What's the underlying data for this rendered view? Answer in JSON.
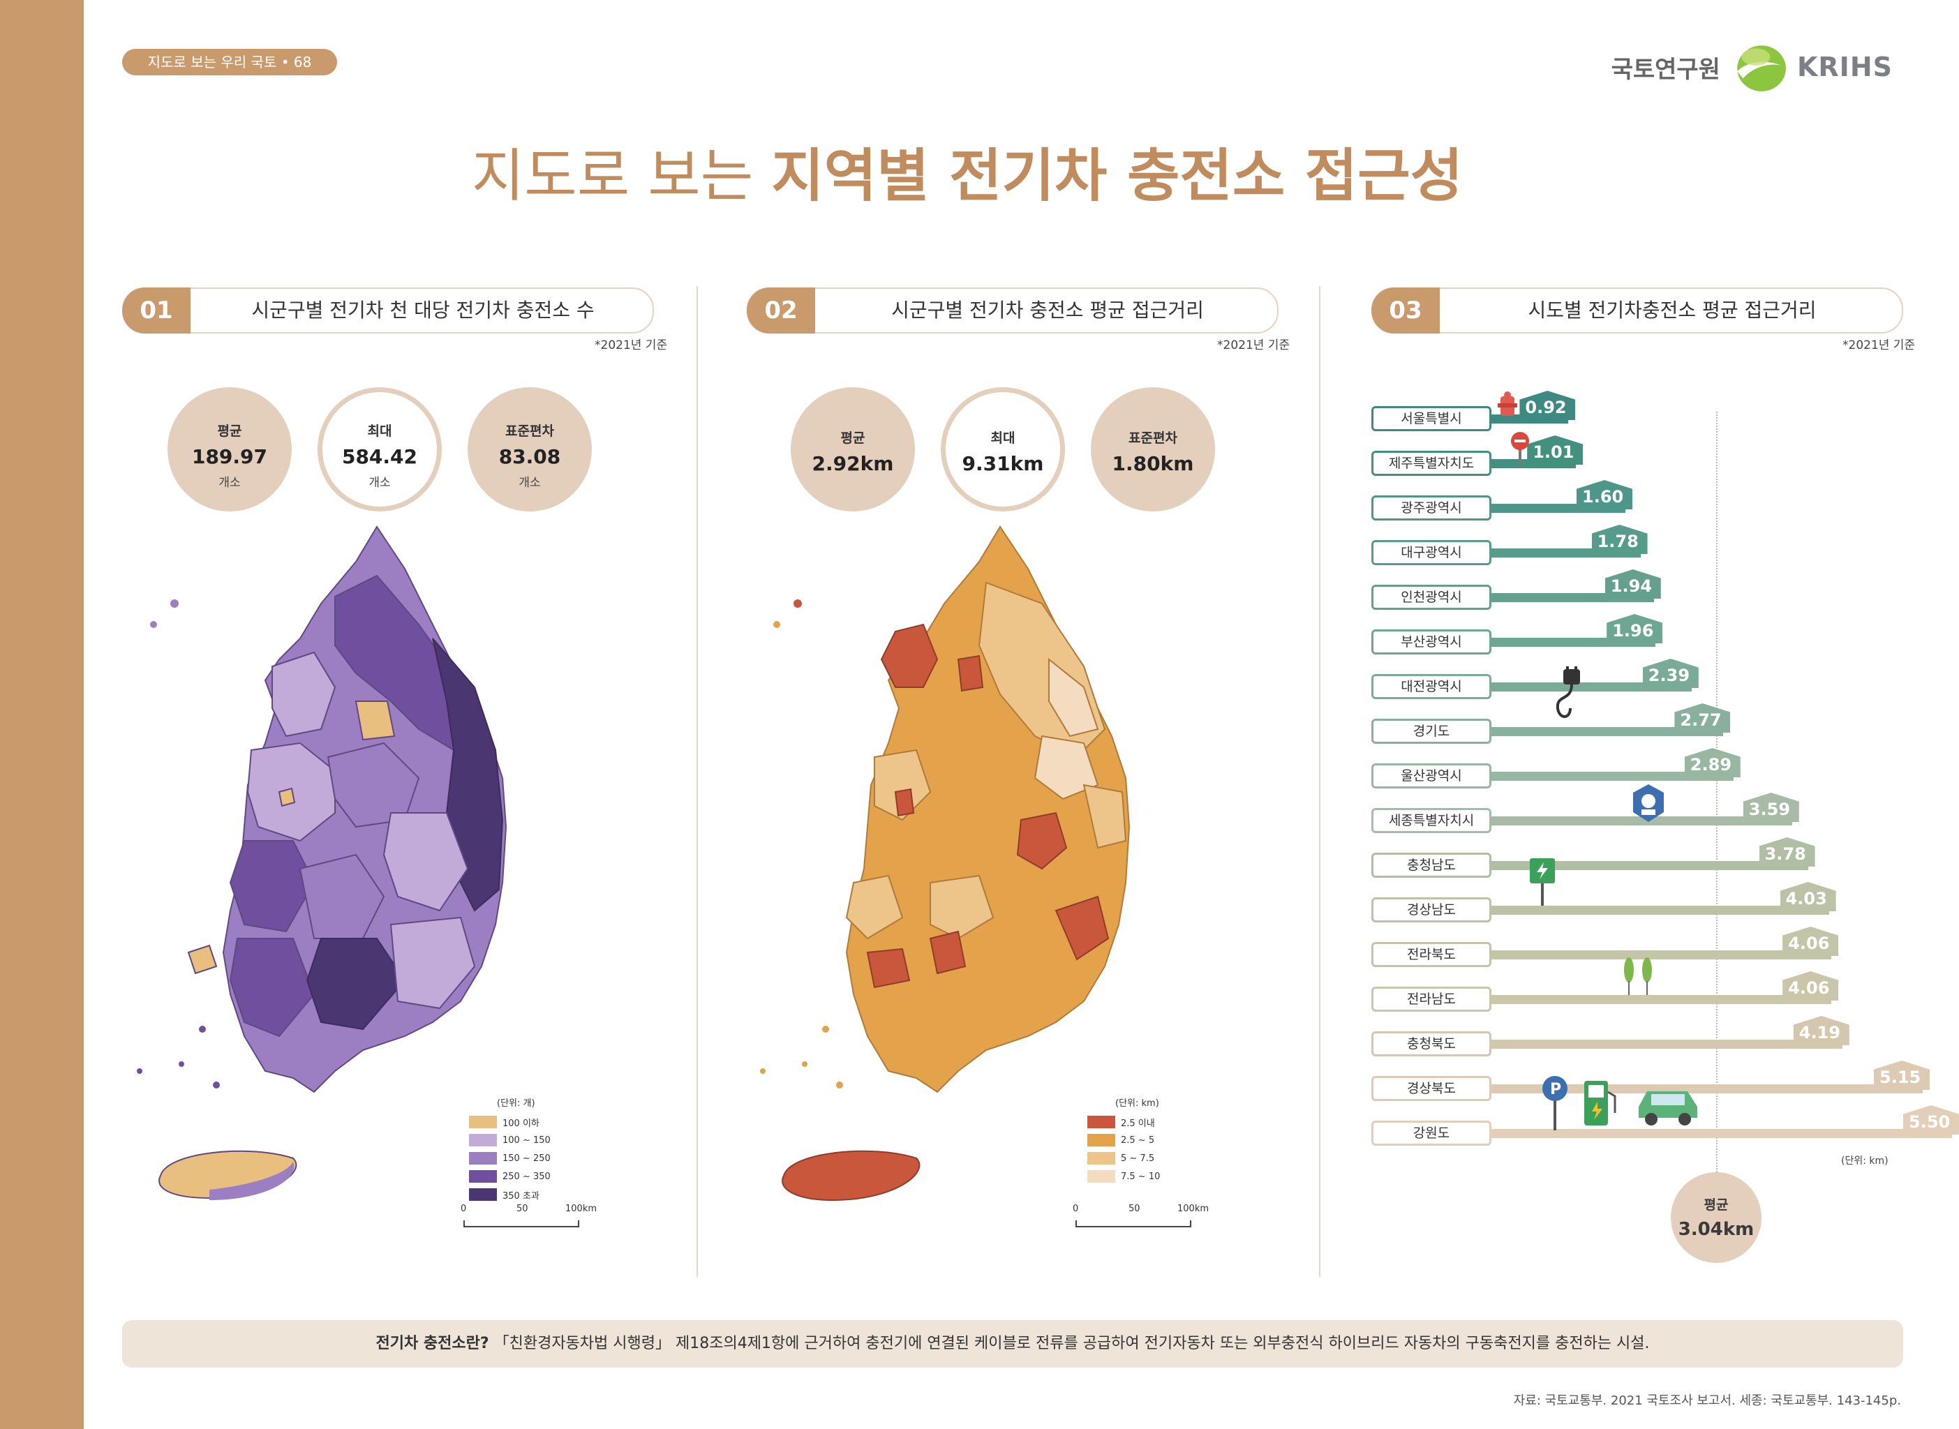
{
  "header": {
    "page_pill": "지도로 보는 우리 국토 • 68",
    "logo_kr": "국토연구원",
    "logo_en": "KRIHS",
    "title_light": "지도로 보는 ",
    "title_bold": "지역별 전기차 충전소 접근성"
  },
  "colors": {
    "accent": "#c89a6c",
    "circle": "#e3cfbb"
  },
  "panels": [
    {
      "num": "01",
      "title": "시군구별 전기차 천 대당 전기차 충전소 수",
      "basis": "*2021년 기준",
      "stats": [
        {
          "label": "평균",
          "value": "189.97",
          "unit": "개소"
        },
        {
          "label": "최대",
          "value": "584.42",
          "unit": "개소"
        },
        {
          "label": "표준편차",
          "value": "83.08",
          "unit": "개소"
        }
      ],
      "legend_title": "(단위: 개)",
      "legend": [
        {
          "label": "100 이하",
          "color": "#e8bf7e"
        },
        {
          "label": "100 ~ 150",
          "color": "#c2abd9"
        },
        {
          "label": "150 ~ 250",
          "color": "#9b7fc2"
        },
        {
          "label": "250 ~ 350",
          "color": "#6f4f9e"
        },
        {
          "label": "350 초과",
          "color": "#4a3670"
        }
      ],
      "scale": [
        "0",
        "50",
        "100km"
      ]
    },
    {
      "num": "02",
      "title": "시군구별 전기차 충전소 평균 접근거리",
      "basis": "*2021년 기준",
      "stats": [
        {
          "label": "평균",
          "value": "2.92km"
        },
        {
          "label": "최대",
          "value": "9.31km"
        },
        {
          "label": "표준편차",
          "value": "1.80km"
        }
      ],
      "legend_title": "(단위: km)",
      "legend": [
        {
          "label": "2.5 이내",
          "color": "#c9573c"
        },
        {
          "label": "2.5 ~ 5",
          "color": "#e4a24a"
        },
        {
          "label": "5 ~ 7.5",
          "color": "#edc48a"
        },
        {
          "label": "7.5 ~ 10",
          "color": "#f3dcc0"
        }
      ],
      "scale": [
        "0",
        "50",
        "100km"
      ]
    },
    {
      "num": "03",
      "title": "시도별 전기차충전소 평균 접근거리",
      "basis": "*2021년 기준"
    }
  ],
  "chart_data": {
    "type": "bar",
    "title": "시도별 전기차충전소 평균 접근거리",
    "categories": [
      "서울특별시",
      "제주특별자치도",
      "광주광역시",
      "대구광역시",
      "인천광역시",
      "부산광역시",
      "대전광역시",
      "경기도",
      "울산광역시",
      "세종특별자치시",
      "충청남도",
      "경상남도",
      "전라북도",
      "전라남도",
      "충청북도",
      "경상북도",
      "강원도"
    ],
    "values": [
      0.92,
      1.01,
      1.6,
      1.78,
      1.94,
      1.96,
      2.39,
      2.77,
      2.89,
      3.59,
      3.78,
      4.03,
      4.06,
      4.06,
      4.19,
      5.15,
      5.5
    ],
    "value_labels": [
      "0.92",
      "1.01",
      "1.60",
      "1.78",
      "1.94",
      "1.96",
      "2.39",
      "2.77",
      "2.89",
      "3.59",
      "3.78",
      "4.03",
      "4.06",
      "4.06",
      "4.19",
      "5.15",
      "5.50"
    ],
    "bar_colors": [
      "#3e8a82",
      "#43907f",
      "#4f968a",
      "#579c8b",
      "#65a08f",
      "#6ea694",
      "#7aab96",
      "#88b09c",
      "#97b7a0",
      "#a7bba6",
      "#b0bea4",
      "#bcc2a6",
      "#c4c4a8",
      "#cbc6aa",
      "#d3c7ae",
      "#dccbb2",
      "#e3cfb7"
    ],
    "unit": "(단위: km)",
    "average": {
      "label": "평균",
      "value": 3.04,
      "text": "3.04km"
    }
  },
  "footer": {
    "note_bold": "전기차 충전소란?",
    "note_text": "「친환경자동차법 시행령」 제18조의4제1항에 근거하여 충전기에 연결된 케이블로 전류를 공급하여 전기자동차 또는 외부충전식 하이브리드 자동차의 구동축전지를 충전하는 시설.",
    "source": "자료: 국토교통부. 2021 국토조사 보고서. 세종: 국토교통부. 143-145p."
  }
}
